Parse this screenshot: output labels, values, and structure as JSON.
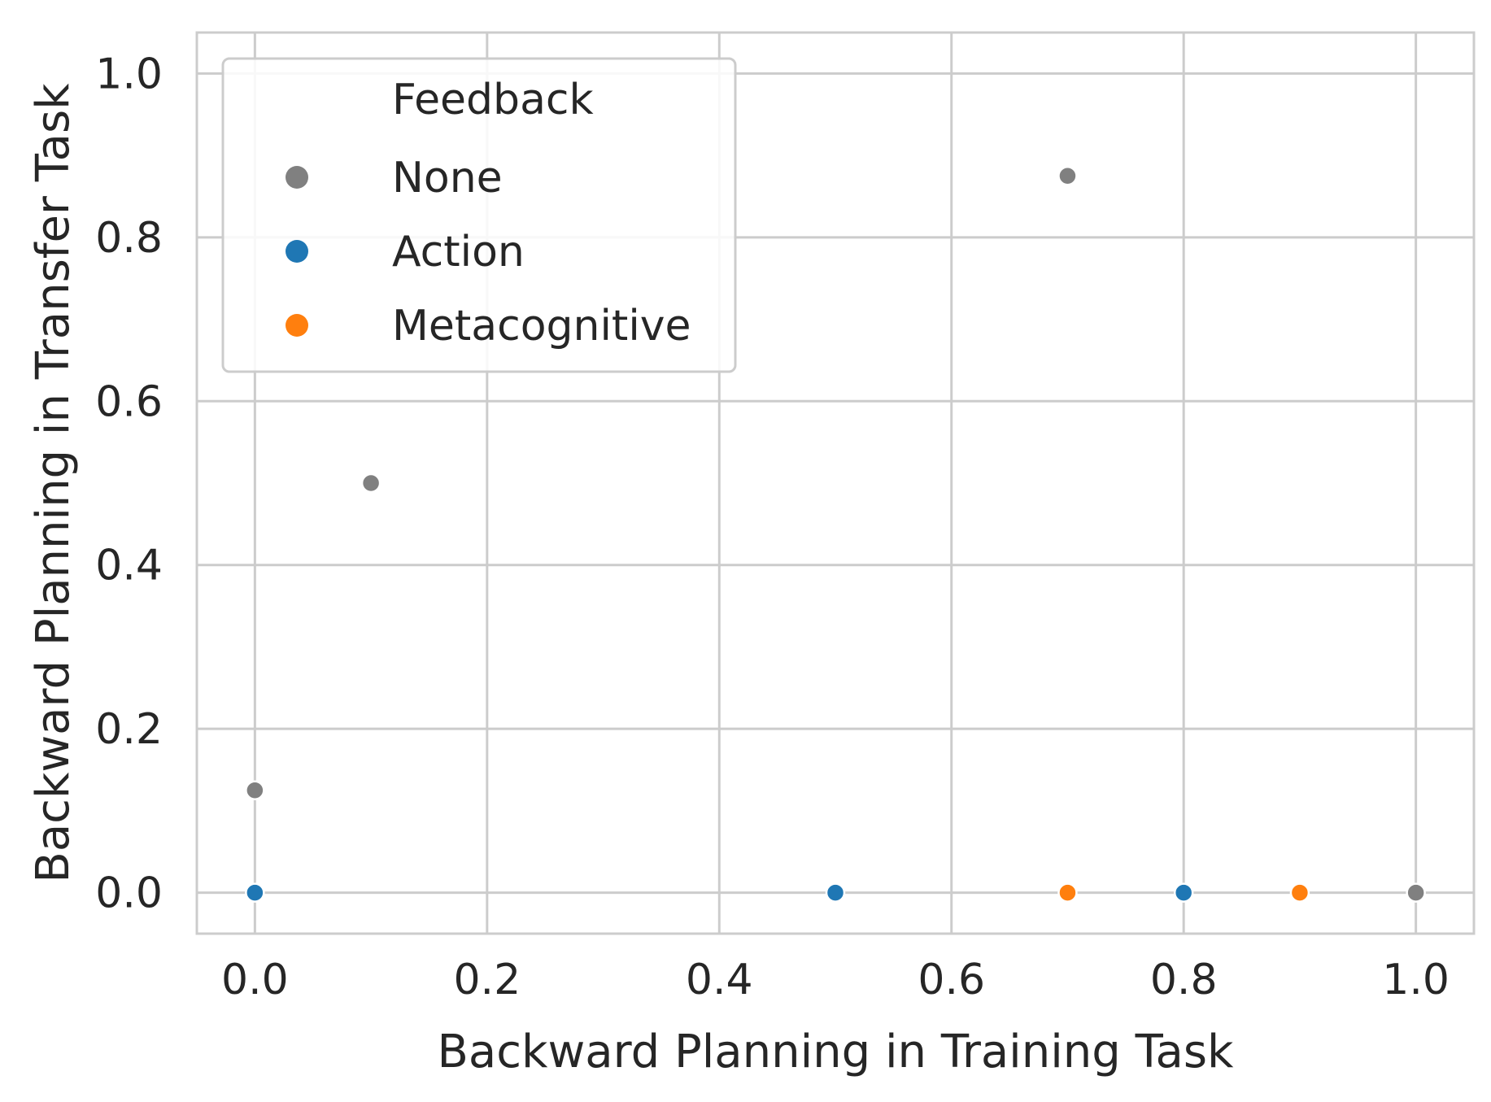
{
  "chart_data": {
    "type": "scatter",
    "xlabel": "Backward Planning in Training Task",
    "ylabel": "Backward Planning in Transfer Task",
    "xlim": [
      -0.05,
      1.05
    ],
    "ylim": [
      -0.05,
      1.05
    ],
    "x_ticks": [
      "0.0",
      "0.2",
      "0.4",
      "0.6",
      "0.8",
      "1.0"
    ],
    "y_ticks": [
      "0.0",
      "0.2",
      "0.4",
      "0.6",
      "0.8",
      "1.0"
    ],
    "grid": true,
    "legend": {
      "title": "Feedback",
      "placement": "top-left"
    },
    "series": [
      {
        "name": "None",
        "color": "#808080",
        "points": [
          [
            0.0,
            0.125
          ],
          [
            0.1,
            0.5
          ],
          [
            0.7,
            0.875
          ],
          [
            1.0,
            0.0
          ]
        ]
      },
      {
        "name": "Action",
        "color": "#1f77b4",
        "points": [
          [
            0.0,
            0.0
          ],
          [
            0.5,
            0.0
          ],
          [
            0.8,
            0.0
          ]
        ]
      },
      {
        "name": "Metacognitive",
        "color": "#ff7f0e",
        "points": [
          [
            0.7,
            0.0
          ],
          [
            0.9,
            0.0
          ]
        ]
      }
    ]
  }
}
